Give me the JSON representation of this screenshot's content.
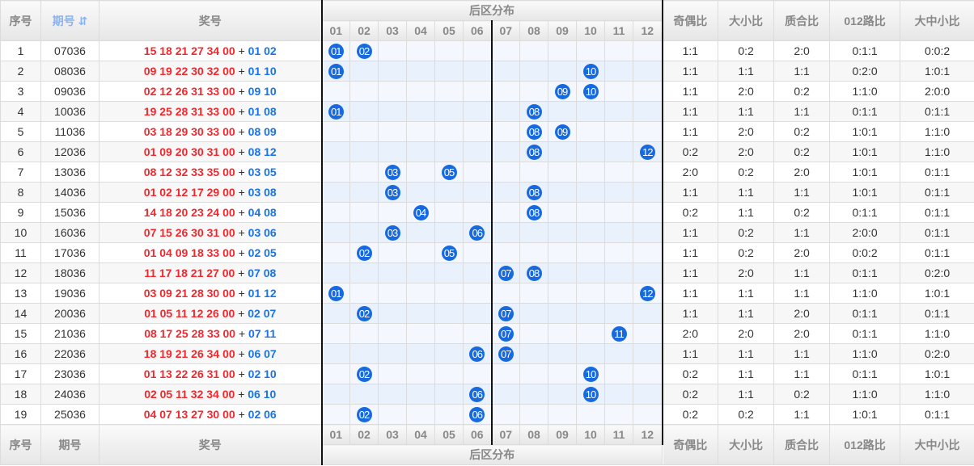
{
  "headers": {
    "seq": "序号",
    "period": "期号",
    "sort_icon": "⇵",
    "numbers": "奖号",
    "back_dist": "后区分布",
    "odd_even": "奇偶比",
    "big_small": "大小比",
    "prime": "质合比",
    "road012": "012路比",
    "big_mid_small": "大中小比"
  },
  "back_cols": [
    "01",
    "02",
    "03",
    "04",
    "05",
    "06",
    "07",
    "08",
    "09",
    "10",
    "11",
    "12"
  ],
  "plus": "+",
  "colors": {
    "front": "#f2282d",
    "back": "#1a73e8",
    "ball": "#1769e0"
  },
  "rows": [
    {
      "seq": "1",
      "period": "07036",
      "front": "15 18 21 27 34 00",
      "back": "01 02",
      "balls": [
        "01",
        "02"
      ],
      "oe": "1:1",
      "bs": "0:2",
      "pc": "2:0",
      "r": "0:1:1",
      "bms": "0:0:2"
    },
    {
      "seq": "2",
      "period": "08036",
      "front": "09 19 22 30 32 00",
      "back": "01 10",
      "balls": [
        "01",
        "10"
      ],
      "oe": "1:1",
      "bs": "1:1",
      "pc": "1:1",
      "r": "0:2:0",
      "bms": "1:0:1"
    },
    {
      "seq": "3",
      "period": "09036",
      "front": "02 12 26 31 33 00",
      "back": "09 10",
      "balls": [
        "09",
        "10"
      ],
      "oe": "1:1",
      "bs": "2:0",
      "pc": "0:2",
      "r": "1:1:0",
      "bms": "2:0:0"
    },
    {
      "seq": "4",
      "period": "10036",
      "front": "19 25 28 31 33 00",
      "back": "01 08",
      "balls": [
        "01",
        "08"
      ],
      "oe": "1:1",
      "bs": "1:1",
      "pc": "1:1",
      "r": "0:1:1",
      "bms": "0:1:1"
    },
    {
      "seq": "5",
      "period": "11036",
      "front": "03 18 29 30 33 00",
      "back": "08 09",
      "balls": [
        "08",
        "09"
      ],
      "oe": "1:1",
      "bs": "2:0",
      "pc": "0:2",
      "r": "1:0:1",
      "bms": "1:1:0"
    },
    {
      "seq": "6",
      "period": "12036",
      "front": "01 09 20 30 31 00",
      "back": "08 12",
      "balls": [
        "08",
        "12"
      ],
      "oe": "0:2",
      "bs": "2:0",
      "pc": "0:2",
      "r": "1:0:1",
      "bms": "1:1:0"
    },
    {
      "seq": "7",
      "period": "13036",
      "front": "08 12 32 33 35 00",
      "back": "03 05",
      "balls": [
        "03",
        "05"
      ],
      "oe": "2:0",
      "bs": "0:2",
      "pc": "2:0",
      "r": "1:0:1",
      "bms": "0:1:1"
    },
    {
      "seq": "8",
      "period": "14036",
      "front": "01 02 12 17 29 00",
      "back": "03 08",
      "balls": [
        "03",
        "08"
      ],
      "oe": "1:1",
      "bs": "1:1",
      "pc": "1:1",
      "r": "1:0:1",
      "bms": "0:1:1"
    },
    {
      "seq": "9",
      "period": "15036",
      "front": "14 18 20 23 24 00",
      "back": "04 08",
      "balls": [
        "04",
        "08"
      ],
      "oe": "0:2",
      "bs": "1:1",
      "pc": "0:2",
      "r": "0:1:1",
      "bms": "0:1:1"
    },
    {
      "seq": "10",
      "period": "16036",
      "front": "07 15 26 30 31 00",
      "back": "03 06",
      "balls": [
        "03",
        "06"
      ],
      "oe": "1:1",
      "bs": "0:2",
      "pc": "1:1",
      "r": "2:0:0",
      "bms": "0:1:1"
    },
    {
      "seq": "11",
      "period": "17036",
      "front": "01 04 09 18 33 00",
      "back": "02 05",
      "balls": [
        "02",
        "05"
      ],
      "oe": "1:1",
      "bs": "0:2",
      "pc": "2:0",
      "r": "0:0:2",
      "bms": "0:1:1"
    },
    {
      "seq": "12",
      "period": "18036",
      "front": "11 17 18 21 27 00",
      "back": "07 08",
      "balls": [
        "07",
        "08"
      ],
      "oe": "1:1",
      "bs": "2:0",
      "pc": "1:1",
      "r": "0:1:1",
      "bms": "0:2:0"
    },
    {
      "seq": "13",
      "period": "19036",
      "front": "03 09 21 28 30 00",
      "back": "01 12",
      "balls": [
        "01",
        "12"
      ],
      "oe": "1:1",
      "bs": "1:1",
      "pc": "1:1",
      "r": "1:1:0",
      "bms": "1:0:1"
    },
    {
      "seq": "14",
      "period": "20036",
      "front": "01 05 11 12 26 00",
      "back": "02 07",
      "balls": [
        "02",
        "07"
      ],
      "oe": "1:1",
      "bs": "1:1",
      "pc": "2:0",
      "r": "0:1:1",
      "bms": "0:1:1"
    },
    {
      "seq": "15",
      "period": "21036",
      "front": "08 17 25 28 33 00",
      "back": "07 11",
      "balls": [
        "07",
        "11"
      ],
      "oe": "2:0",
      "bs": "2:0",
      "pc": "2:0",
      "r": "0:1:1",
      "bms": "1:1:0"
    },
    {
      "seq": "16",
      "period": "22036",
      "front": "18 19 21 26 34 00",
      "back": "06 07",
      "balls": [
        "06",
        "07"
      ],
      "oe": "1:1",
      "bs": "1:1",
      "pc": "1:1",
      "r": "1:1:0",
      "bms": "0:2:0"
    },
    {
      "seq": "17",
      "period": "23036",
      "front": "01 13 22 26 31 00",
      "back": "02 10",
      "balls": [
        "02",
        "10"
      ],
      "oe": "0:2",
      "bs": "1:1",
      "pc": "1:1",
      "r": "0:1:1",
      "bms": "1:0:1"
    },
    {
      "seq": "18",
      "period": "24036",
      "front": "02 05 11 32 34 00",
      "back": "06 10",
      "balls": [
        "06",
        "10"
      ],
      "oe": "0:2",
      "bs": "1:1",
      "pc": "0:2",
      "r": "1:1:0",
      "bms": "1:1:0"
    },
    {
      "seq": "19",
      "period": "25036",
      "front": "04 07 13 27 30 00",
      "back": "02 06",
      "balls": [
        "02",
        "06"
      ],
      "oe": "0:2",
      "bs": "0:2",
      "pc": "1:1",
      "r": "1:0:1",
      "bms": "0:1:1"
    }
  ]
}
